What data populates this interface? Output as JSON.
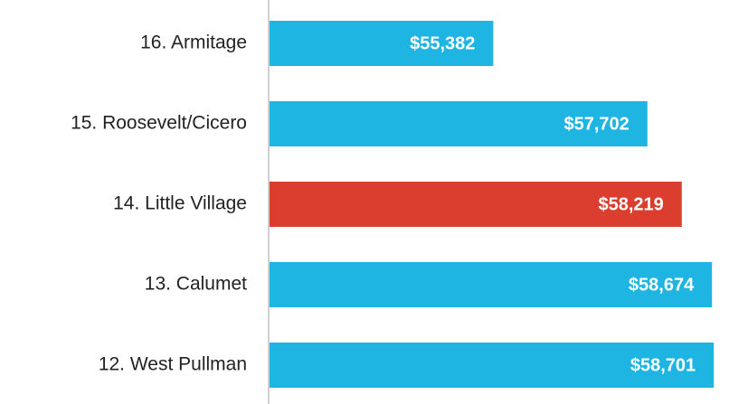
{
  "chart_data": {
    "type": "hbar",
    "categories": [
      "16. Armitage",
      "15. Roosevelt/Cicero",
      "14. Little Village",
      "13. Calumet",
      "12. West Pullman"
    ],
    "values": [
      55382,
      57702,
      58219,
      58674,
      58701
    ],
    "value_labels": [
      "$55,382",
      "$57,702",
      "$58,219",
      "$58,674",
      "$58,701"
    ],
    "colors": [
      "#1fb5e3",
      "#1fb5e3",
      "#db3e2f",
      "#1fb5e3",
      "#1fb5e3"
    ],
    "xlim": [
      52000,
      58930
    ]
  }
}
